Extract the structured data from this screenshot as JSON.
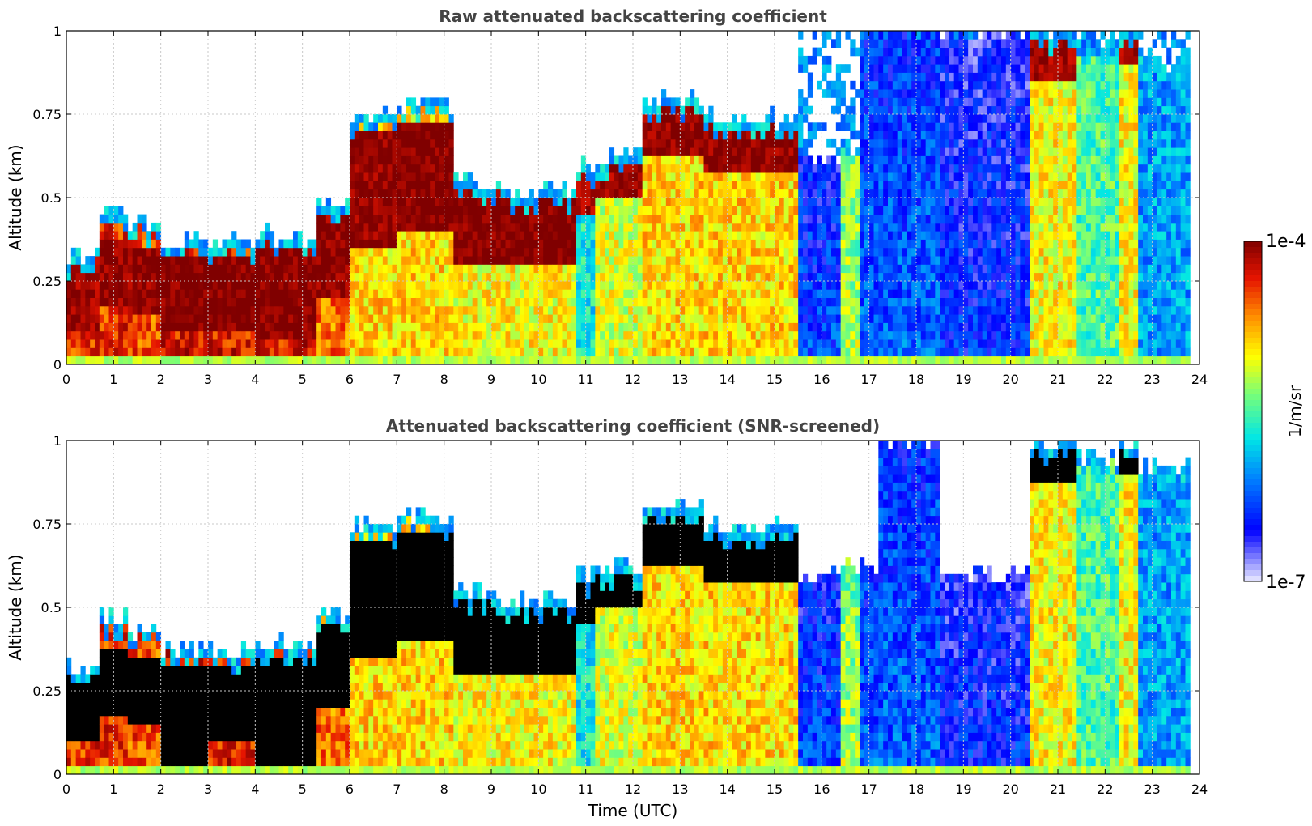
{
  "chart_data": [
    {
      "type": "heatmap",
      "title": "Raw attenuated backscattering coefficient",
      "xlabel": "",
      "ylabel": "Altitude (km)",
      "xlim": [
        0,
        24
      ],
      "ylim": [
        0,
        1
      ],
      "x_ticks": [
        "0",
        "1",
        "2",
        "3",
        "4",
        "5",
        "6",
        "7",
        "8",
        "9",
        "10",
        "11",
        "12",
        "13",
        "14",
        "15",
        "16",
        "17",
        "18",
        "19",
        "20",
        "21",
        "22",
        "23",
        "24"
      ],
      "y_ticks": [
        "0",
        "0.25",
        "0.5",
        "0.75",
        "1"
      ],
      "grid": true,
      "z_scale": "log",
      "z_range": [
        1e-07,
        0.0001
      ],
      "profiles": [
        {
          "t_start": 0.0,
          "t_end": 0.7,
          "top_km": 0.33,
          "layer_km": [
            0.1,
            0.3
          ],
          "layer_log10": -4.1,
          "below_log10": -4.4,
          "mode": "normal",
          "hatch": false
        },
        {
          "t_start": 0.7,
          "t_end": 1.3,
          "top_km": 0.47,
          "layer_km": [
            0.18,
            0.38
          ],
          "layer_log10": -4.05,
          "below_log10": -4.4,
          "mode": "normal",
          "hatch": false
        },
        {
          "t_start": 1.3,
          "t_end": 2.0,
          "top_km": 0.43,
          "layer_km": [
            0.16,
            0.36
          ],
          "layer_log10": -4.05,
          "below_log10": -4.5,
          "mode": "normal",
          "hatch": false
        },
        {
          "t_start": 2.0,
          "t_end": 3.0,
          "top_km": 0.38,
          "layer_km": [
            0.1,
            0.32
          ],
          "layer_log10": -4.0,
          "below_log10": -4.3,
          "mode": "normal",
          "hatch": false
        },
        {
          "t_start": 3.0,
          "t_end": 4.0,
          "top_km": 0.37,
          "layer_km": [
            0.1,
            0.32
          ],
          "layer_log10": -4.0,
          "below_log10": -4.3,
          "mode": "normal",
          "hatch": false
        },
        {
          "t_start": 4.0,
          "t_end": 5.3,
          "top_km": 0.39,
          "layer_km": [
            0.08,
            0.34
          ],
          "layer_log10": -4.0,
          "below_log10": -4.3,
          "mode": "normal",
          "hatch": false
        },
        {
          "t_start": 5.3,
          "t_end": 6.0,
          "top_km": 0.48,
          "layer_km": [
            0.2,
            0.45
          ],
          "layer_log10": -4.05,
          "below_log10": -4.6,
          "mode": "normal",
          "hatch": false
        },
        {
          "t_start": 6.0,
          "t_end": 7.0,
          "top_km": 0.74,
          "layer_km": [
            0.35,
            0.7
          ],
          "layer_log10": -4.05,
          "below_log10": -4.9,
          "mode": "normal",
          "hatch": false
        },
        {
          "t_start": 7.0,
          "t_end": 8.2,
          "top_km": 0.78,
          "layer_km": [
            0.4,
            0.72
          ],
          "layer_log10": -4.0,
          "below_log10": -4.9,
          "mode": "normal",
          "hatch": false
        },
        {
          "t_start": 8.2,
          "t_end": 9.2,
          "top_km": 0.55,
          "layer_km": [
            0.3,
            0.52
          ],
          "layer_log10": -4.0,
          "below_log10": -5.0,
          "mode": "normal",
          "hatch": false
        },
        {
          "t_start": 9.2,
          "t_end": 10.8,
          "top_km": 0.52,
          "layer_km": [
            0.3,
            0.5
          ],
          "layer_log10": -4.0,
          "below_log10": -5.0,
          "mode": "normal",
          "hatch": false
        },
        {
          "t_start": 10.8,
          "t_end": 11.2,
          "top_km": 0.6,
          "layer_km": [
            0.45,
            0.6
          ],
          "layer_log10": -4.1,
          "below_log10": -5.7,
          "mode": "normal",
          "hatch": false
        },
        {
          "t_start": 11.2,
          "t_end": 12.2,
          "top_km": 0.62,
          "layer_km": [
            0.5,
            0.62
          ],
          "layer_log10": -4.1,
          "below_log10": -5.1,
          "mode": "normal",
          "hatch": false
        },
        {
          "t_start": 12.2,
          "t_end": 13.5,
          "top_km": 0.8,
          "layer_km": [
            0.62,
            0.8
          ],
          "layer_log10": -4.05,
          "below_log10": -4.9,
          "mode": "normal",
          "hatch": false
        },
        {
          "t_start": 13.5,
          "t_end": 15.5,
          "top_km": 0.74,
          "layer_km": [
            0.58,
            0.74
          ],
          "layer_log10": -4.05,
          "below_log10": -4.9,
          "mode": "normal",
          "hatch": false
        },
        {
          "t_start": 15.5,
          "t_end": 16.4,
          "top_km": 0.62,
          "layer_km": [
            0.0,
            0.0
          ],
          "layer_log10": -5.8,
          "below_log10": -6.3,
          "mode": "diffuse",
          "hatch": true
        },
        {
          "t_start": 16.4,
          "t_end": 16.8,
          "top_km": 0.62,
          "layer_km": [
            0.0,
            0.0
          ],
          "layer_log10": -5.6,
          "below_log10": -5.2,
          "mode": "diffuse",
          "hatch": true
        },
        {
          "t_start": 16.8,
          "t_end": 18.5,
          "top_km": 1.0,
          "layer_km": [
            0.0,
            0.0
          ],
          "layer_log10": -5.9,
          "below_log10": -6.2,
          "mode": "diffuse",
          "hatch": true
        },
        {
          "t_start": 18.5,
          "t_end": 20.4,
          "top_km": 1.0,
          "layer_km": [
            0.0,
            0.0
          ],
          "layer_log10": -6.2,
          "below_log10": -6.4,
          "mode": "diffuse",
          "hatch": true
        },
        {
          "t_start": 20.4,
          "t_end": 21.4,
          "top_km": 1.0,
          "layer_km": [
            0.85,
            1.0
          ],
          "layer_log10": -4.1,
          "below_log10": -5.0,
          "mode": "normal",
          "hatch": true
        },
        {
          "t_start": 21.4,
          "t_end": 22.3,
          "top_km": 0.95,
          "layer_km": [
            0.0,
            0.0
          ],
          "layer_log10": -4.3,
          "below_log10": -5.5,
          "mode": "normal",
          "hatch": true
        },
        {
          "t_start": 22.3,
          "t_end": 22.7,
          "top_km": 1.0,
          "layer_km": [
            0.9,
            1.0
          ],
          "layer_log10": -4.1,
          "below_log10": -5.0,
          "mode": "normal",
          "hatch": true
        },
        {
          "t_start": 22.7,
          "t_end": 23.8,
          "top_km": 0.9,
          "layer_km": [
            0.0,
            0.0
          ],
          "layer_log10": -5.4,
          "below_log10": -6.0,
          "mode": "normal",
          "hatch": true
        }
      ]
    },
    {
      "type": "heatmap",
      "title": "Attenuated backscattering coefficient (SNR-screened)",
      "xlabel": "Time (UTC)",
      "ylabel": "Altitude (km)",
      "xlim": [
        0,
        24
      ],
      "ylim": [
        0,
        1
      ],
      "x_ticks": [
        "0",
        "1",
        "2",
        "3",
        "4",
        "5",
        "6",
        "7",
        "8",
        "9",
        "10",
        "11",
        "12",
        "13",
        "14",
        "15",
        "16",
        "17",
        "18",
        "19",
        "20",
        "21",
        "22",
        "23",
        "24"
      ],
      "y_ticks": [
        "0",
        "0.25",
        "0.5",
        "0.75",
        "1"
      ],
      "grid": true,
      "z_scale": "log",
      "z_range": [
        1e-07,
        0.0001
      ],
      "profiles": [
        {
          "t_start": 0.0,
          "t_end": 0.7,
          "top_km": 0.33,
          "layer_km": [
            0.1,
            0.3
          ],
          "layer_log10": -3.5,
          "below_log10": -4.4,
          "mode": "normal",
          "hatch": false
        },
        {
          "t_start": 0.7,
          "t_end": 1.3,
          "top_km": 0.47,
          "layer_km": [
            0.18,
            0.38
          ],
          "layer_log10": -3.5,
          "below_log10": -4.4,
          "mode": "normal",
          "hatch": false
        },
        {
          "t_start": 1.3,
          "t_end": 2.0,
          "top_km": 0.43,
          "layer_km": [
            0.16,
            0.36
          ],
          "layer_log10": -3.5,
          "below_log10": -4.5,
          "mode": "normal",
          "hatch": false
        },
        {
          "t_start": 2.0,
          "t_end": 3.0,
          "top_km": 0.38,
          "layer_km": [
            0.0,
            0.32
          ],
          "layer_log10": -3.5,
          "below_log10": -4.3,
          "mode": "normal",
          "hatch": false
        },
        {
          "t_start": 3.0,
          "t_end": 4.0,
          "top_km": 0.37,
          "layer_km": [
            0.1,
            0.32
          ],
          "layer_log10": -3.5,
          "below_log10": -4.3,
          "mode": "normal",
          "hatch": false
        },
        {
          "t_start": 4.0,
          "t_end": 5.3,
          "top_km": 0.39,
          "layer_km": [
            0.0,
            0.34
          ],
          "layer_log10": -3.5,
          "below_log10": -4.3,
          "mode": "normal",
          "hatch": false
        },
        {
          "t_start": 5.3,
          "t_end": 6.0,
          "top_km": 0.48,
          "layer_km": [
            0.2,
            0.45
          ],
          "layer_log10": -3.5,
          "below_log10": -4.6,
          "mode": "normal",
          "hatch": false
        },
        {
          "t_start": 6.0,
          "t_end": 7.0,
          "top_km": 0.74,
          "layer_km": [
            0.35,
            0.7
          ],
          "layer_log10": -3.5,
          "below_log10": -4.9,
          "mode": "normal",
          "hatch": false
        },
        {
          "t_start": 7.0,
          "t_end": 8.2,
          "top_km": 0.78,
          "layer_km": [
            0.4,
            0.72
          ],
          "layer_log10": -3.5,
          "below_log10": -4.9,
          "mode": "normal",
          "hatch": false
        },
        {
          "t_start": 8.2,
          "t_end": 9.2,
          "top_km": 0.55,
          "layer_km": [
            0.3,
            0.52
          ],
          "layer_log10": -3.5,
          "below_log10": -5.0,
          "mode": "normal",
          "hatch": false
        },
        {
          "t_start": 9.2,
          "t_end": 10.8,
          "top_km": 0.52,
          "layer_km": [
            0.3,
            0.5
          ],
          "layer_log10": -3.5,
          "below_log10": -5.0,
          "mode": "normal",
          "hatch": false
        },
        {
          "t_start": 10.8,
          "t_end": 11.2,
          "top_km": 0.6,
          "layer_km": [
            0.45,
            0.6
          ],
          "layer_log10": -3.5,
          "below_log10": -5.7,
          "mode": "normal",
          "hatch": false
        },
        {
          "t_start": 11.2,
          "t_end": 12.2,
          "top_km": 0.62,
          "layer_km": [
            0.5,
            0.62
          ],
          "layer_log10": -3.5,
          "below_log10": -5.1,
          "mode": "normal",
          "hatch": false
        },
        {
          "t_start": 12.2,
          "t_end": 13.5,
          "top_km": 0.8,
          "layer_km": [
            0.62,
            0.8
          ],
          "layer_log10": -3.5,
          "below_log10": -4.9,
          "mode": "normal",
          "hatch": false
        },
        {
          "t_start": 13.5,
          "t_end": 15.5,
          "top_km": 0.74,
          "layer_km": [
            0.58,
            0.74
          ],
          "layer_log10": -3.5,
          "below_log10": -4.9,
          "mode": "normal",
          "hatch": false
        },
        {
          "t_start": 15.5,
          "t_end": 16.4,
          "top_km": 0.6,
          "layer_km": [
            0.0,
            0.0
          ],
          "layer_log10": -6.3,
          "below_log10": -6.3,
          "mode": "diffuse",
          "hatch": false
        },
        {
          "t_start": 16.4,
          "t_end": 16.8,
          "top_km": 0.62,
          "layer_km": [
            0.0,
            0.0
          ],
          "layer_log10": -5.6,
          "below_log10": -5.2,
          "mode": "diffuse",
          "hatch": false
        },
        {
          "t_start": 16.8,
          "t_end": 17.2,
          "top_km": 0.62,
          "layer_km": [
            0.0,
            0.0
          ],
          "layer_log10": -6.2,
          "below_log10": -6.2,
          "mode": "diffuse",
          "hatch": false
        },
        {
          "t_start": 17.2,
          "t_end": 18.5,
          "top_km": 1.0,
          "layer_km": [
            0.0,
            0.0
          ],
          "layer_log10": -5.9,
          "below_log10": -6.2,
          "mode": "diffuse",
          "hatch": false
        },
        {
          "t_start": 18.5,
          "t_end": 20.4,
          "top_km": 0.6,
          "layer_km": [
            0.0,
            0.0
          ],
          "layer_log10": -6.2,
          "below_log10": -6.4,
          "mode": "diffuse",
          "hatch": false
        },
        {
          "t_start": 20.4,
          "t_end": 21.4,
          "top_km": 1.0,
          "layer_km": [
            0.88,
            1.0
          ],
          "layer_log10": -3.5,
          "below_log10": -5.0,
          "mode": "normal",
          "hatch": false
        },
        {
          "t_start": 21.4,
          "t_end": 22.3,
          "top_km": 0.95,
          "layer_km": [
            0.0,
            0.0
          ],
          "layer_log10": -4.3,
          "below_log10": -5.5,
          "mode": "normal",
          "hatch": false
        },
        {
          "t_start": 22.3,
          "t_end": 22.7,
          "top_km": 1.0,
          "layer_km": [
            0.9,
            1.0
          ],
          "layer_log10": -3.5,
          "below_log10": -5.0,
          "mode": "normal",
          "hatch": false
        },
        {
          "t_start": 22.7,
          "t_end": 23.8,
          "top_km": 0.92,
          "layer_km": [
            0.0,
            0.0
          ],
          "layer_log10": -5.4,
          "below_log10": -6.0,
          "mode": "normal",
          "hatch": false
        }
      ]
    }
  ],
  "colorbar": {
    "max_label": "1e-4",
    "min_label": "1e-7",
    "unit_label": "1/m/sr"
  },
  "colors": {
    "title": "#444444",
    "axis": "#000000",
    "grid": "#c8c8c8",
    "saturated": "#000000"
  }
}
